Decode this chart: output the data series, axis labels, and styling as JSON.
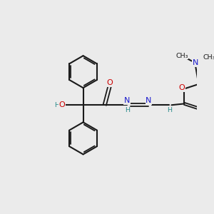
{
  "bg_color": "#ebebeb",
  "bond_color": "#1a1a1a",
  "atom_colors": {
    "O": "#cc0000",
    "N": "#1a1acc",
    "H": "#2a8a8a",
    "C": "#1a1a1a"
  }
}
